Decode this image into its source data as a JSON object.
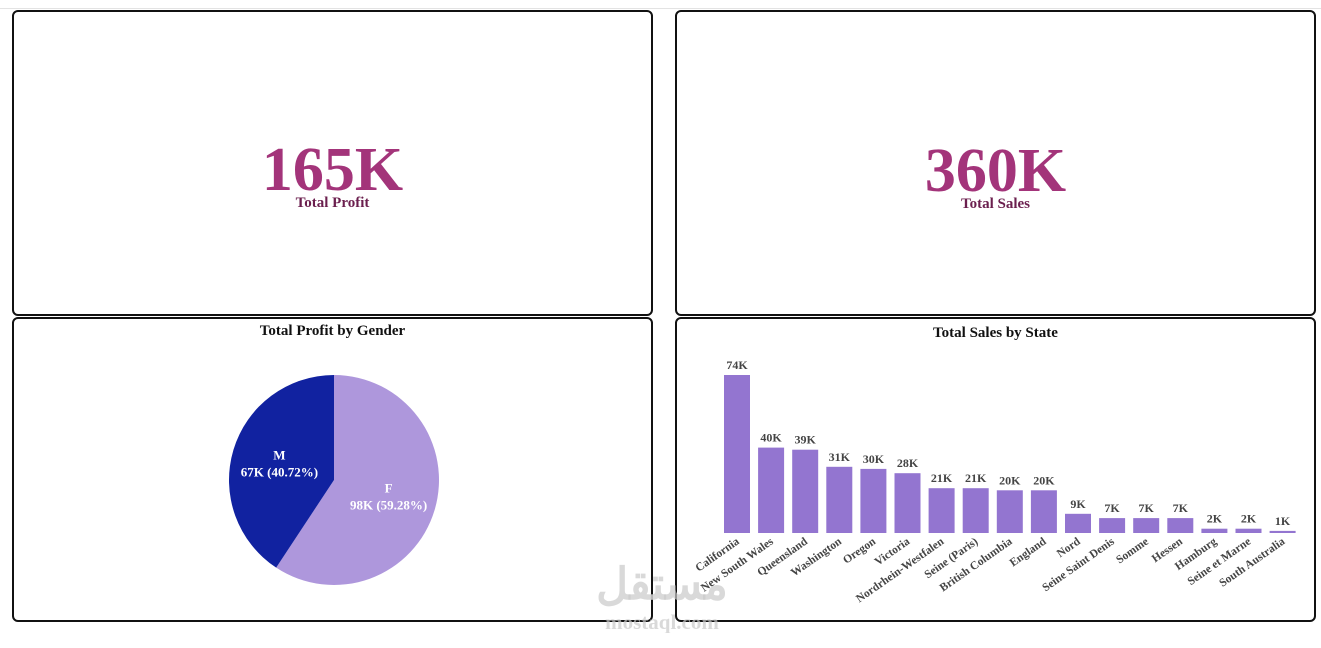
{
  "kpis": {
    "profit": {
      "value": "165K",
      "label": "Total Profit"
    },
    "sales": {
      "value": "360K",
      "label": "Total Sales"
    }
  },
  "colors": {
    "kpi_value": "#a3347a",
    "kpi_label": "#6b1f4e",
    "bar": "#9375d0",
    "pie_m": "#1122a0",
    "pie_f": "#ae97dc"
  },
  "watermark": {
    "arabic": "مستقل",
    "latin": "mostaql.com"
  },
  "chart_data": [
    {
      "type": "pie",
      "title": "Total Profit by Gender",
      "slices": [
        {
          "label": "F",
          "value": 98,
          "percent": 59.28,
          "text": "98K (59.28%)"
        },
        {
          "label": "M",
          "value": 67,
          "percent": 40.72,
          "text": "67K (40.72%)"
        }
      ]
    },
    {
      "type": "bar",
      "title": "Total Sales by State",
      "xlabel": "",
      "ylabel": "",
      "ylim": [
        0,
        74
      ],
      "categories": [
        "California",
        "New South Wales",
        "Queensland",
        "Washington",
        "Oregon",
        "Victoria",
        "Nordrhein-Westfalen",
        "Seine (Paris)",
        "British Columbia",
        "England",
        "Nord",
        "Seine Saint Denis",
        "Somme",
        "Hessen",
        "Hamburg",
        "Seine et Marne",
        "South Australia"
      ],
      "values": [
        74,
        40,
        39,
        31,
        30,
        28,
        21,
        21,
        20,
        20,
        9,
        7,
        7,
        7,
        2,
        2,
        1
      ],
      "labels": [
        "74K",
        "40K",
        "39K",
        "31K",
        "30K",
        "28K",
        "21K",
        "21K",
        "20K",
        "20K",
        "9K",
        "7K",
        "7K",
        "7K",
        "2K",
        "2K",
        "1K"
      ]
    }
  ]
}
